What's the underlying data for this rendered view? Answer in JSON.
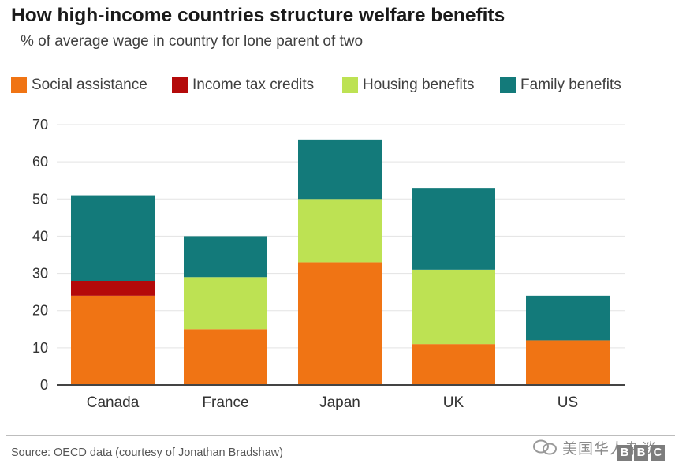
{
  "header": {
    "title": "How high-income countries structure welfare benefits",
    "subtitle": "% of average wage in country for lone parent of two"
  },
  "legend": [
    {
      "label": "Social assistance",
      "color": "#f07414"
    },
    {
      "label": "Income tax credits",
      "color": "#b40a0a"
    },
    {
      "label": "Housing benefits",
      "color": "#bde253"
    },
    {
      "label": "Family benefits",
      "color": "#137a7a"
    }
  ],
  "chart_data": {
    "type": "bar",
    "stacked": true,
    "title": "How high-income countries structure welfare benefits",
    "subtitle": "% of average wage in country for lone parent of two",
    "categories": [
      "Canada",
      "France",
      "Japan",
      "UK",
      "US"
    ],
    "series": [
      {
        "name": "Social assistance",
        "color": "#f07414",
        "values": [
          24,
          15,
          33,
          11,
          12
        ]
      },
      {
        "name": "Income tax credits",
        "color": "#b40a0a",
        "values": [
          4,
          0,
          0,
          0,
          0
        ]
      },
      {
        "name": "Housing benefits",
        "color": "#bde253",
        "values": [
          0,
          14,
          17,
          20,
          0
        ]
      },
      {
        "name": "Family benefits",
        "color": "#137a7a",
        "values": [
          23,
          11,
          16,
          22,
          12
        ]
      }
    ],
    "yticks": [
      0,
      10,
      20,
      30,
      40,
      50,
      60,
      70
    ],
    "ylim": [
      0,
      70
    ],
    "xlabel": "",
    "ylabel": "",
    "grid": true,
    "legend_position": "top"
  },
  "footer": {
    "source": "Source: OECD data (courtesy of Jonathan Bradshaw)",
    "watermark_text": "美国华人杂谈",
    "logo_letters": [
      "B",
      "B",
      "C"
    ]
  }
}
